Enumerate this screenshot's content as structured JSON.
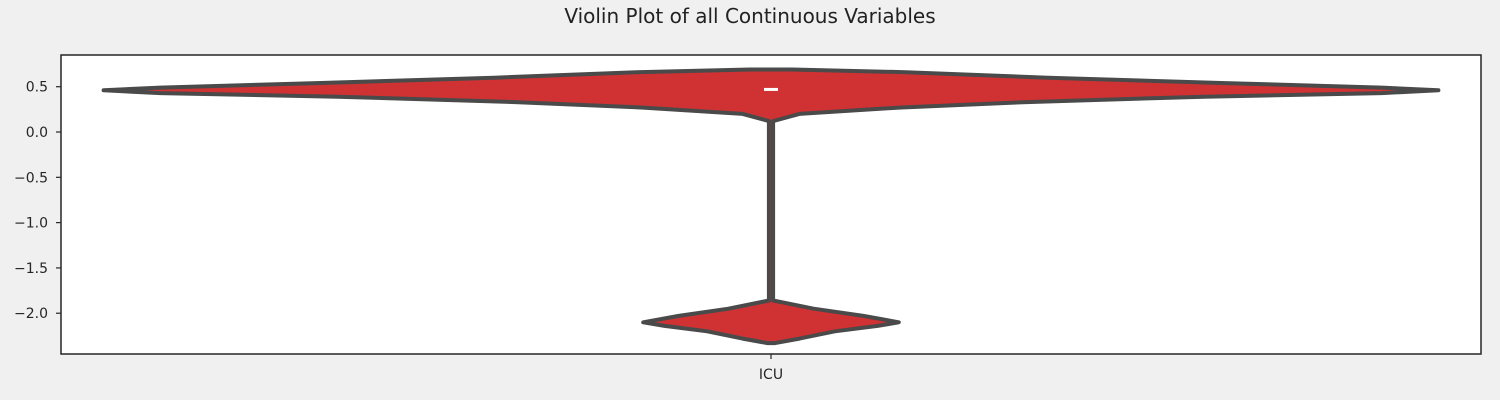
{
  "chart_data": {
    "type": "violin",
    "title": "Violin Plot of all Continuous Variables",
    "xlabel": "",
    "ylabel": "",
    "categories": [
      "ICU"
    ],
    "ylim": [
      -2.45,
      0.85
    ],
    "yticks": [
      0.5,
      0.0,
      -0.5,
      -1.0,
      -1.5,
      -2.0
    ],
    "ytick_labels": [
      "0.5",
      "0.0",
      "−0.5",
      "−1.0",
      "−1.5",
      "−2.0"
    ],
    "grid": false,
    "violins": [
      {
        "category": "ICU",
        "color": "#d03234",
        "edge_color": "#4a4a4a",
        "median": 0.47,
        "density_profile": [
          {
            "y": 0.69,
            "w": 0.03
          },
          {
            "y": 0.66,
            "w": 0.19
          },
          {
            "y": 0.6,
            "w": 0.39
          },
          {
            "y": 0.54,
            "w": 0.64
          },
          {
            "y": 0.49,
            "w": 0.86
          },
          {
            "y": 0.46,
            "w": 0.94
          },
          {
            "y": 0.43,
            "w": 0.86
          },
          {
            "y": 0.39,
            "w": 0.61
          },
          {
            "y": 0.33,
            "w": 0.36
          },
          {
            "y": 0.27,
            "w": 0.18
          },
          {
            "y": 0.2,
            "w": 0.04
          },
          {
            "y": 0.12,
            "w": 0.003
          },
          {
            "y": -1.86,
            "w": 0.003
          },
          {
            "y": -1.95,
            "w": 0.06
          },
          {
            "y": -2.03,
            "w": 0.13
          },
          {
            "y": -2.1,
            "w": 0.18
          },
          {
            "y": -2.14,
            "w": 0.15
          },
          {
            "y": -2.2,
            "w": 0.09
          },
          {
            "y": -2.28,
            "w": 0.04
          },
          {
            "y": -2.33,
            "w": 0.005
          }
        ]
      }
    ]
  }
}
